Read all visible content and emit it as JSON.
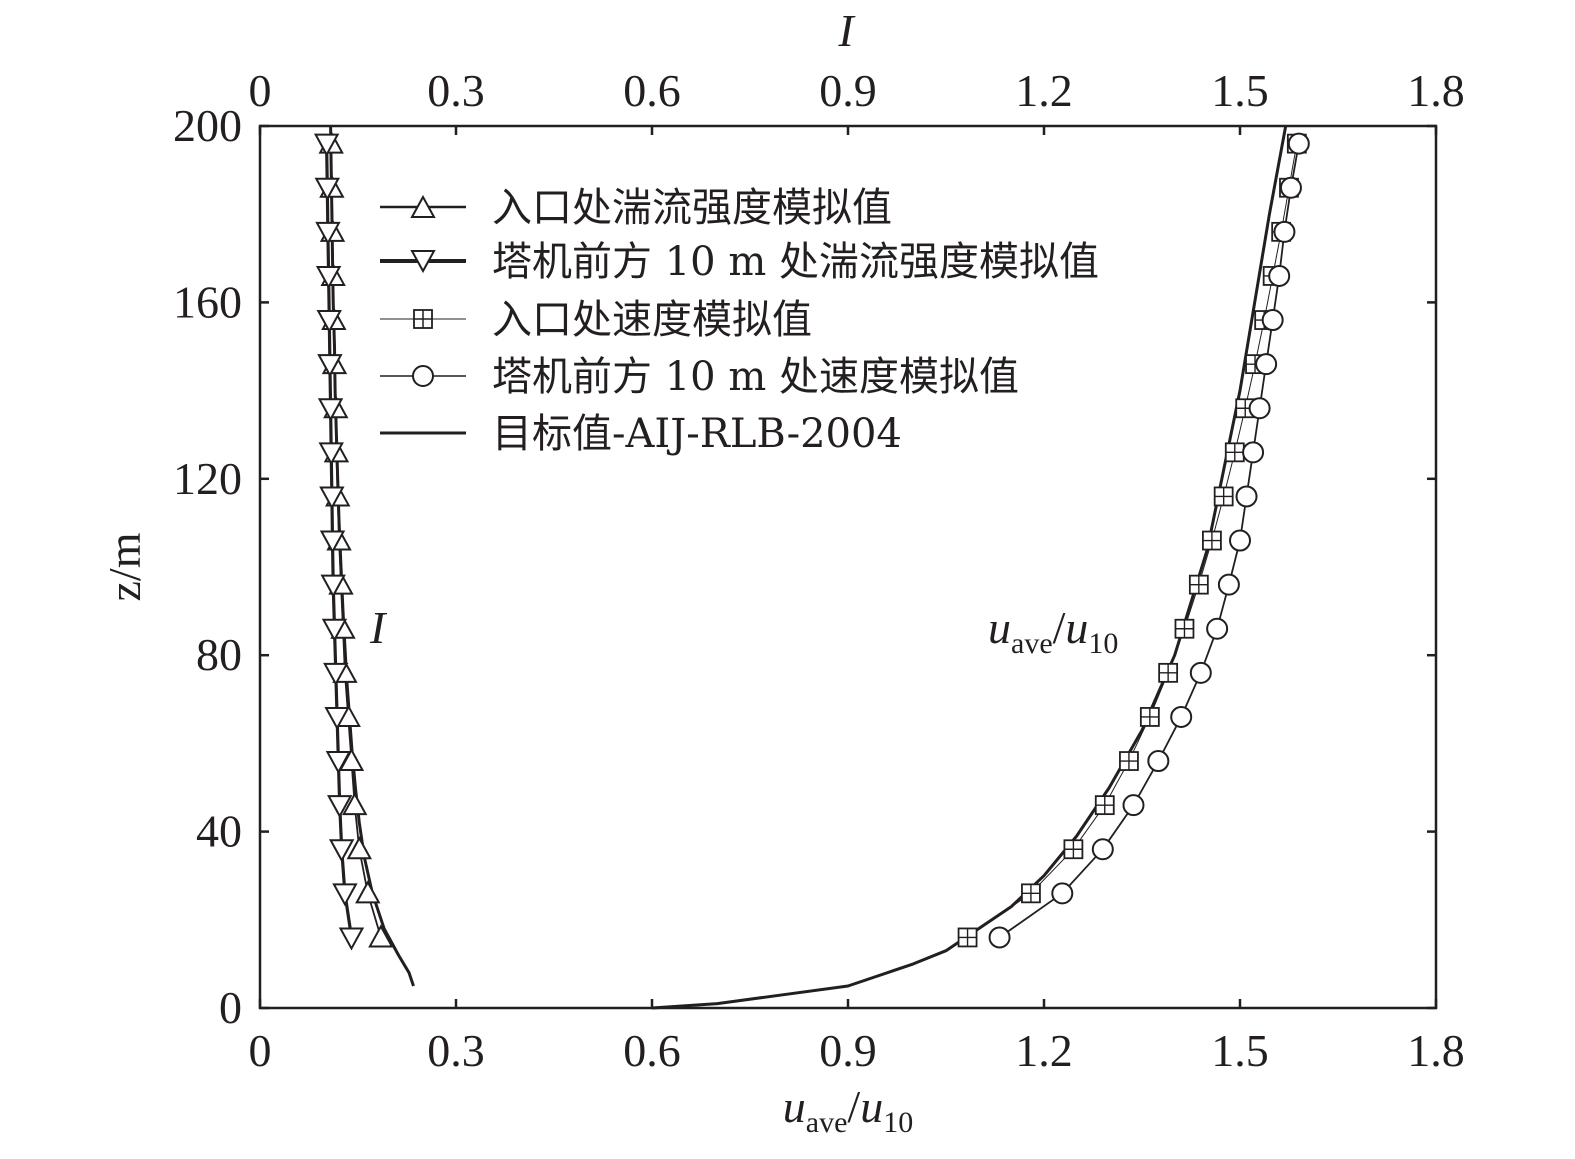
{
  "chart_data": {
    "type": "line",
    "x_bottom": {
      "label_main": "u",
      "label_sub1": "ave",
      "label_slash": "/",
      "label_main2": "u",
      "label_sub2": "10",
      "range": [
        0,
        1.8
      ],
      "ticks": [
        "0",
        "0.3",
        "0.6",
        "0.9",
        "1.2",
        "1.5",
        "1.8"
      ]
    },
    "x_top": {
      "label": "I",
      "range": [
        0,
        1.8
      ],
      "ticks": [
        "0",
        "0.3",
        "0.6",
        "0.9",
        "1.2",
        "1.5",
        "1.8"
      ]
    },
    "y": {
      "label": "z/m",
      "range": [
        0,
        200
      ],
      "ticks": [
        "0",
        "40",
        "80",
        "120",
        "160",
        "200"
      ]
    },
    "annotations": {
      "intensity_label": "I",
      "velocity_label_main": "u",
      "velocity_label_sub1": "ave",
      "velocity_label_slash": "/",
      "velocity_label_main2": "u",
      "velocity_label_sub2": "10"
    },
    "series": [
      {
        "name": "入口处湍流强度模拟值",
        "marker": "triangle-up",
        "style": "line-marker",
        "x_axis": "top",
        "points": [
          [
            0.185,
            16
          ],
          [
            0.165,
            26
          ],
          [
            0.152,
            36
          ],
          [
            0.145,
            46
          ],
          [
            0.14,
            56
          ],
          [
            0.135,
            66
          ],
          [
            0.13,
            76
          ],
          [
            0.127,
            86
          ],
          [
            0.124,
            96
          ],
          [
            0.121,
            106
          ],
          [
            0.119,
            116
          ],
          [
            0.117,
            126
          ],
          [
            0.116,
            136
          ],
          [
            0.114,
            146
          ],
          [
            0.113,
            156
          ],
          [
            0.112,
            166
          ],
          [
            0.111,
            176
          ],
          [
            0.11,
            186
          ],
          [
            0.109,
            196
          ]
        ]
      },
      {
        "name": "塔机前方 10 m 处湍流强度模拟值",
        "marker": "triangle-down",
        "style": "line-marker-bold",
        "x_axis": "top",
        "points": [
          [
            0.14,
            16
          ],
          [
            0.13,
            26
          ],
          [
            0.125,
            36
          ],
          [
            0.122,
            46
          ],
          [
            0.12,
            56
          ],
          [
            0.118,
            66
          ],
          [
            0.116,
            76
          ],
          [
            0.114,
            86
          ],
          [
            0.112,
            96
          ],
          [
            0.111,
            106
          ],
          [
            0.11,
            116
          ],
          [
            0.109,
            126
          ],
          [
            0.108,
            136
          ],
          [
            0.107,
            146
          ],
          [
            0.106,
            156
          ],
          [
            0.105,
            166
          ],
          [
            0.104,
            176
          ],
          [
            0.103,
            186
          ],
          [
            0.102,
            196
          ]
        ]
      },
      {
        "name": "入口处速度模拟值",
        "marker": "square-plus",
        "style": "thin-line-marker",
        "x_axis": "bottom",
        "points": [
          [
            1.083,
            16
          ],
          [
            1.18,
            26
          ],
          [
            1.245,
            36
          ],
          [
            1.293,
            46
          ],
          [
            1.33,
            56
          ],
          [
            1.362,
            66
          ],
          [
            1.39,
            76
          ],
          [
            1.415,
            86
          ],
          [
            1.437,
            96
          ],
          [
            1.457,
            106
          ],
          [
            1.475,
            116
          ],
          [
            1.492,
            126
          ],
          [
            1.508,
            136
          ],
          [
            1.523,
            146
          ],
          [
            1.537,
            156
          ],
          [
            1.55,
            166
          ],
          [
            1.563,
            176
          ],
          [
            1.575,
            186
          ],
          [
            1.587,
            196
          ]
        ]
      },
      {
        "name": "塔机前方 10 m 处速度模拟值",
        "marker": "circle",
        "style": "line-marker",
        "x_axis": "bottom",
        "points": [
          [
            1.132,
            16
          ],
          [
            1.228,
            26
          ],
          [
            1.29,
            36
          ],
          [
            1.337,
            46
          ],
          [
            1.375,
            56
          ],
          [
            1.41,
            66
          ],
          [
            1.44,
            76
          ],
          [
            1.465,
            86
          ],
          [
            1.483,
            96
          ],
          [
            1.5,
            106
          ],
          [
            1.51,
            116
          ],
          [
            1.52,
            126
          ],
          [
            1.53,
            136
          ],
          [
            1.54,
            146
          ],
          [
            1.55,
            156
          ],
          [
            1.56,
            166
          ],
          [
            1.568,
            176
          ],
          [
            1.578,
            186
          ],
          [
            1.59,
            196
          ]
        ]
      },
      {
        "name": "目标值-AIJ-RLB-2004",
        "marker": "none",
        "style": "solid",
        "curves": [
          {
            "x_axis": "top",
            "points": [
              [
                0.235,
                5
              ],
              [
                0.228,
                8
              ],
              [
                0.212,
                12
              ],
              [
                0.19,
                18
              ],
              [
                0.172,
                26
              ],
              [
                0.16,
                34
              ],
              [
                0.152,
                42
              ],
              [
                0.146,
                50
              ],
              [
                0.141,
                58
              ],
              [
                0.137,
                66
              ],
              [
                0.133,
                74
              ],
              [
                0.13,
                82
              ],
              [
                0.127,
                90
              ],
              [
                0.124,
                100
              ],
              [
                0.121,
                110
              ],
              [
                0.119,
                120
              ],
              [
                0.117,
                130
              ],
              [
                0.115,
                140
              ],
              [
                0.114,
                150
              ],
              [
                0.112,
                160
              ],
              [
                0.111,
                170
              ],
              [
                0.11,
                180
              ],
              [
                0.109,
                190
              ],
              [
                0.108,
                200
              ]
            ]
          },
          {
            "x_axis": "bottom",
            "points": [
              [
                0.6,
                0
              ],
              [
                0.7,
                1
              ],
              [
                0.8,
                3
              ],
              [
                0.9,
                5
              ],
              [
                1.0,
                10
              ],
              [
                1.05,
                13
              ],
              [
                1.1,
                18
              ],
              [
                1.15,
                23
              ],
              [
                1.2,
                30
              ],
              [
                1.25,
                39
              ],
              [
                1.3,
                50
              ],
              [
                1.35,
                63
              ],
              [
                1.4,
                80
              ],
              [
                1.45,
                104
              ],
              [
                1.5,
                140
              ],
              [
                1.545,
                180
              ],
              [
                1.57,
                200
              ]
            ]
          }
        ]
      }
    ],
    "legend_position": "top-center",
    "grid": false
  }
}
